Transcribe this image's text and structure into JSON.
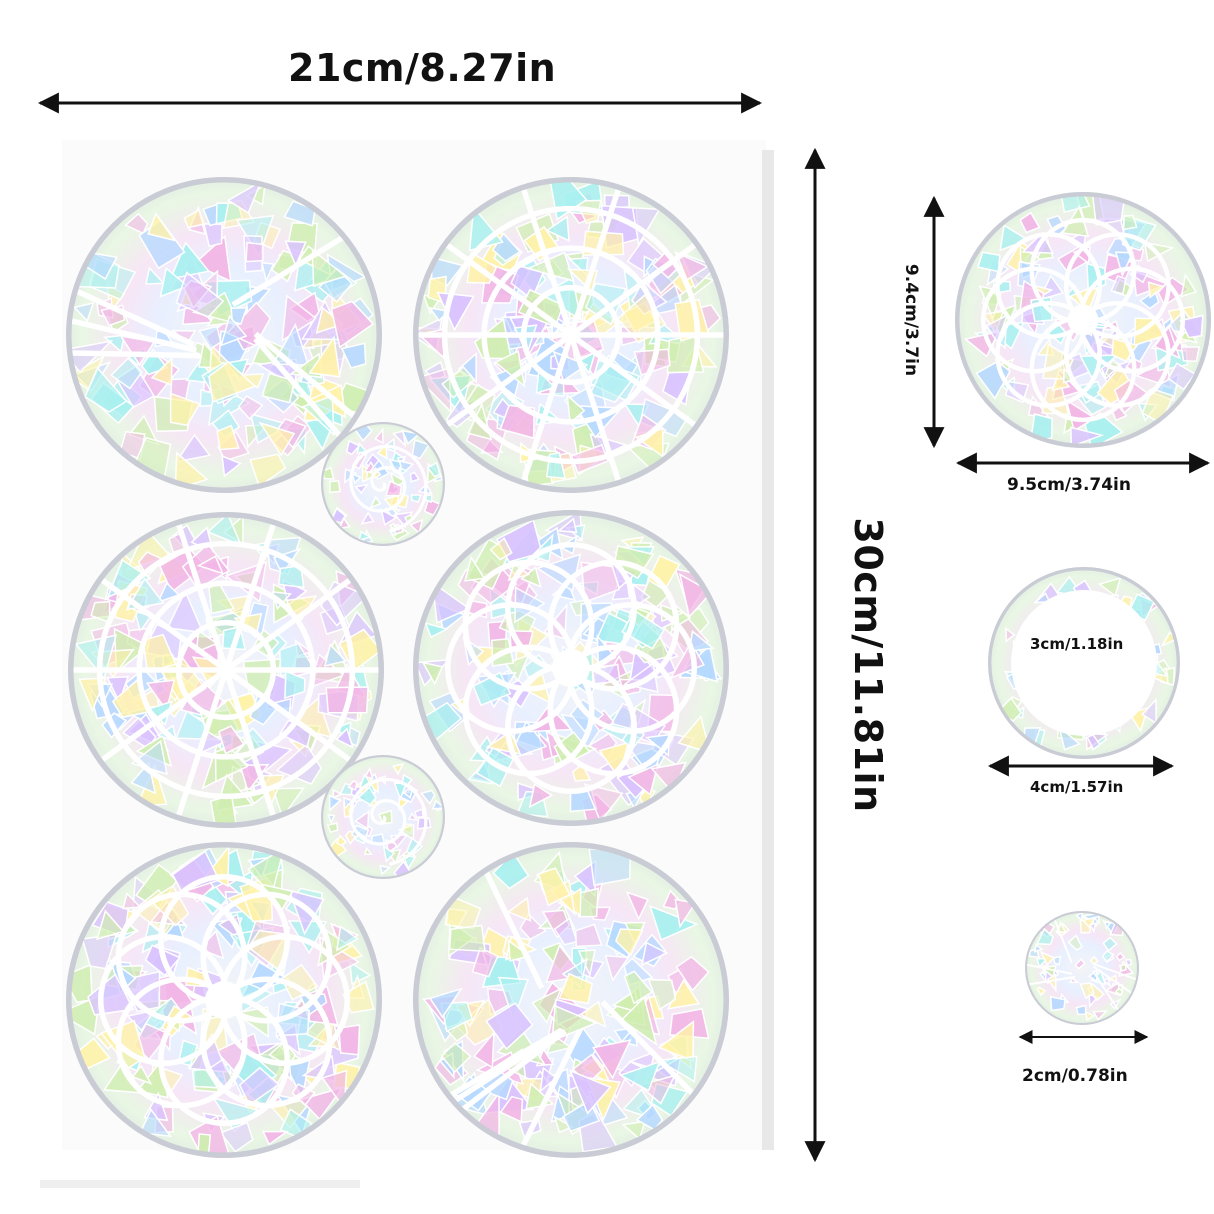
{
  "dimensions": {
    "sheet_width": "21cm/8.27in",
    "sheet_height": "30cm/11.81in",
    "large_height": "9.4cm/3.7in",
    "large_width": "9.5cm/3.74in",
    "ring_inner": "3cm/1.18in",
    "ring_outer": "4cm/1.57in",
    "small_width": "2cm/0.78in"
  },
  "stickers": [
    {
      "name": "sticker-shattered-glass",
      "pattern": "shards"
    },
    {
      "name": "sticker-dreamcatcher",
      "pattern": "web"
    },
    {
      "name": "sticker-spiral-small-top",
      "pattern": "spiral"
    },
    {
      "name": "sticker-mandala-web",
      "pattern": "web"
    },
    {
      "name": "sticker-flower-of-life-large",
      "pattern": "flower"
    },
    {
      "name": "sticker-spiral-small-bottom",
      "pattern": "spiral"
    },
    {
      "name": "sticker-seed-of-life",
      "pattern": "flower"
    },
    {
      "name": "sticker-yin-yang-mandala",
      "pattern": "shards"
    }
  ],
  "colors": {
    "iridescent": [
      "#f2b6e6",
      "#b6d8ff",
      "#cfeeb0",
      "#fff2a8",
      "#d9c2ff",
      "#a8f0f0"
    ],
    "arrow": "#111111"
  }
}
